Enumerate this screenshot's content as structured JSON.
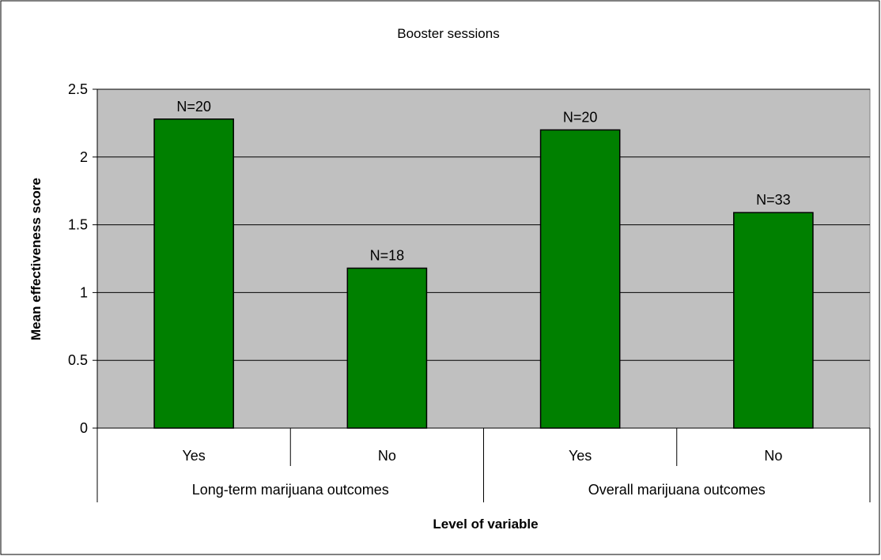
{
  "chart_data": {
    "type": "bar",
    "title": "Booster sessions",
    "xlabel": "Level of variable",
    "ylabel": "Mean effectiveness score",
    "ylim": [
      0,
      2.5
    ],
    "yticks": [
      "0",
      "0.5",
      "1",
      "1.5",
      "2",
      "2.5"
    ],
    "grid": true,
    "legend": "none",
    "groups": [
      {
        "label": "Long-term marijuana outcomes",
        "categories": [
          "Yes",
          "No"
        ]
      },
      {
        "label": "Overall marijuana outcomes",
        "categories": [
          "Yes",
          "No"
        ]
      }
    ],
    "categories": [
      "Yes",
      "No",
      "Yes",
      "No"
    ],
    "values": [
      2.28,
      1.18,
      2.2,
      1.59
    ],
    "data_labels": [
      "N=20",
      "N=18",
      "N=20",
      "N=33"
    ],
    "bar_color": "#008000",
    "plot_background": "#c0c0c0"
  }
}
